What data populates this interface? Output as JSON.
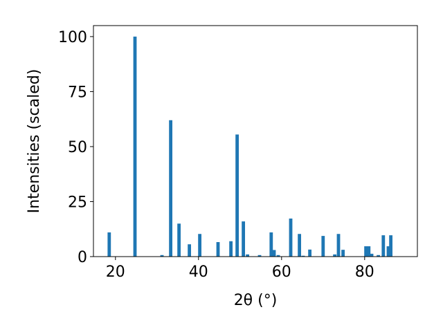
{
  "chart_data": {
    "type": "bar",
    "xlabel": "2θ (°)",
    "ylabel": "Intensities (scaled)",
    "x": [
      18.5,
      24.7,
      31.2,
      33.3,
      35.3,
      37.8,
      40.3,
      44.7,
      47.8,
      49.3,
      50.8,
      51.8,
      54.7,
      57.5,
      58.2,
      59.2,
      62.2,
      64.3,
      65.2,
      66.8,
      70.0,
      72.8,
      73.7,
      74.8,
      80.3,
      81.0,
      81.7,
      83.3,
      84.5,
      85.7,
      86.3
    ],
    "values": [
      11,
      100,
      0.7,
      62,
      15,
      5.6,
      10.3,
      6.6,
      7,
      55.5,
      16,
      1,
      0.7,
      11,
      3,
      0.7,
      17.3,
      10.3,
      0.4,
      3.2,
      9.4,
      1,
      10.3,
      3.1,
      4.7,
      4.7,
      1.3,
      0.7,
      9.7,
      4.7,
      9.7
    ],
    "color": "#1f77b4",
    "xlim": [
      14.7,
      92.7
    ],
    "xticks": [
      20,
      40,
      60,
      80
    ],
    "ylim": [
      0,
      105
    ],
    "yticks": [
      0,
      25,
      50,
      75,
      100
    ],
    "grid": false
  }
}
